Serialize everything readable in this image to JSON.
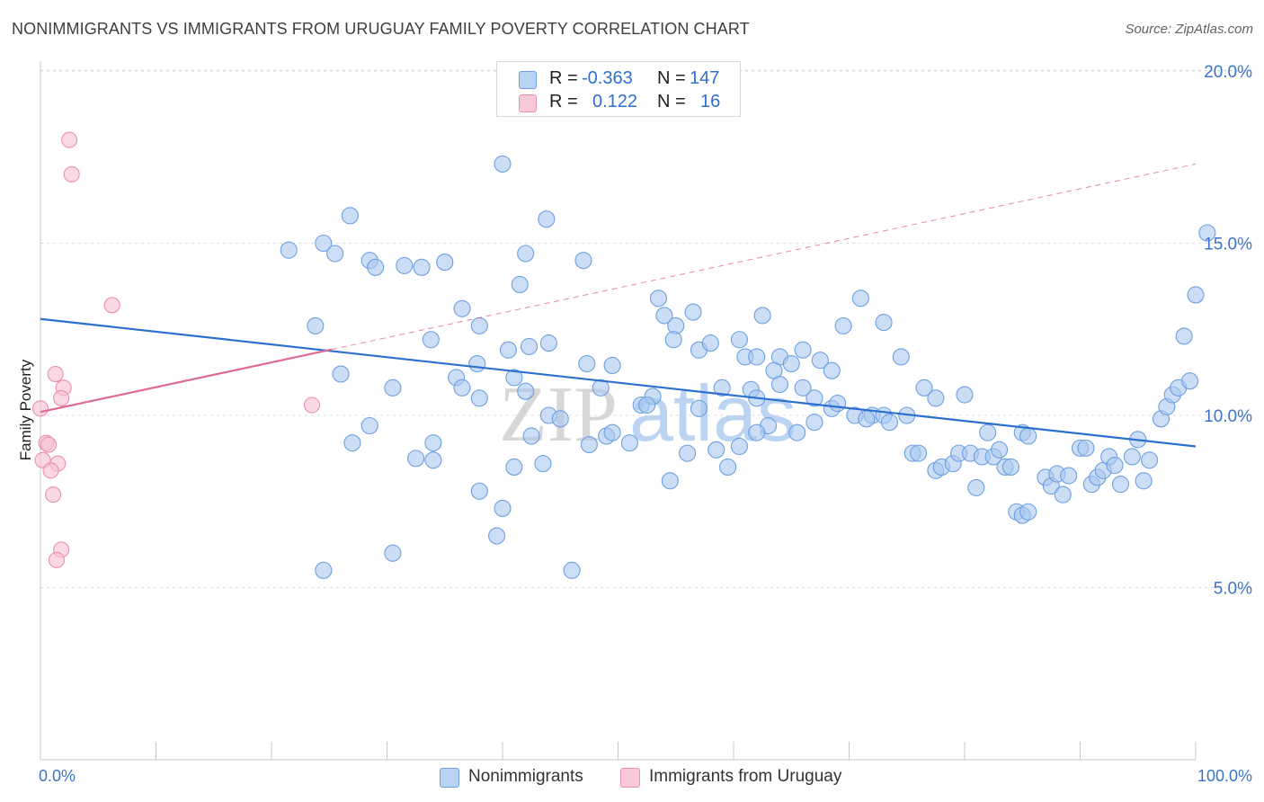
{
  "title": "NONIMMIGRANTS VS IMMIGRANTS FROM URUGUAY FAMILY POVERTY CORRELATION CHART",
  "source": "Source: ZipAtlas.com",
  "watermark": {
    "zip": "ZIP",
    "atlas": "atlas"
  },
  "legend_top": [
    {
      "r_label": "R =",
      "r_value": "-0.363",
      "n_label": "N =",
      "n_value": "147"
    },
    {
      "r_label": "R =",
      "r_value": "0.122",
      "n_label": "N =",
      "n_value": "16"
    }
  ],
  "legend_bottom": [
    {
      "label": "Nonimmigrants"
    },
    {
      "label": "Immigrants from Uruguay"
    }
  ],
  "colors": {
    "blue_fill": "#a9c8f0",
    "blue_stroke": "#6e9fe0",
    "blue_line": "#2b6fcf",
    "pink_fill": "#f7bfd0",
    "pink_stroke": "#ec8fae",
    "pink_line": "#e06a93",
    "tick_text": "#3b74c9",
    "grid": "#dcdcdc"
  },
  "chart_data": {
    "type": "scatter",
    "title": "NONIMMIGRANTS VS IMMIGRANTS FROM URUGUAY FAMILY POVERTY CORRELATION CHART",
    "xlabel": "",
    "ylabel": "Family Poverty",
    "xlim": [
      0,
      100
    ],
    "ylim": [
      0,
      21
    ],
    "x_tick_labels": [
      "0.0%",
      "100.0%"
    ],
    "y_ticks": [
      5,
      10,
      15,
      20
    ],
    "y_tick_labels": [
      "5.0%",
      "10.0%",
      "15.0%",
      "20.0%"
    ],
    "grid": "horizontal dashed",
    "legend_placement": "top-center and bottom",
    "series": [
      {
        "name": "Nonimmigrants",
        "r": -0.363,
        "n": 147,
        "trend": {
          "x": [
            0,
            100
          ],
          "y": [
            12.8,
            9.1
          ],
          "style": "solid"
        },
        "points": [
          [
            21.5,
            14.8
          ],
          [
            24.5,
            15.0
          ],
          [
            25.5,
            14.7
          ],
          [
            26.8,
            15.8
          ],
          [
            28.5,
            14.5
          ],
          [
            29.0,
            14.3
          ],
          [
            31.5,
            14.35
          ],
          [
            33.0,
            14.3
          ],
          [
            35.0,
            14.45
          ],
          [
            40.0,
            17.3
          ],
          [
            43.8,
            15.7
          ],
          [
            42.0,
            14.7
          ],
          [
            47.0,
            14.5
          ],
          [
            41.5,
            13.8
          ],
          [
            38.0,
            12.6
          ],
          [
            33.8,
            12.2
          ],
          [
            23.8,
            12.6
          ],
          [
            26.0,
            11.2
          ],
          [
            36.5,
            13.1
          ],
          [
            40.5,
            11.9
          ],
          [
            42.3,
            12.0
          ],
          [
            44.0,
            12.1
          ],
          [
            37.8,
            11.5
          ],
          [
            36.0,
            11.1
          ],
          [
            47.3,
            11.5
          ],
          [
            49.5,
            11.45
          ],
          [
            41.0,
            11.1
          ],
          [
            30.5,
            10.8
          ],
          [
            36.5,
            10.8
          ],
          [
            38.0,
            10.5
          ],
          [
            42.0,
            10.7
          ],
          [
            44.0,
            10.0
          ],
          [
            48.5,
            10.8
          ],
          [
            52.0,
            10.3
          ],
          [
            53.0,
            10.55
          ],
          [
            52.5,
            10.3
          ],
          [
            28.5,
            9.7
          ],
          [
            34.0,
            9.2
          ],
          [
            32.5,
            8.75
          ],
          [
            34.0,
            8.7
          ],
          [
            27.0,
            9.2
          ],
          [
            42.5,
            9.4
          ],
          [
            45.0,
            9.9
          ],
          [
            47.5,
            9.15
          ],
          [
            49.0,
            9.4
          ],
          [
            49.5,
            9.5
          ],
          [
            57.0,
            10.2
          ],
          [
            58.5,
            9.0
          ],
          [
            60.5,
            9.1
          ],
          [
            59.5,
            8.5
          ],
          [
            54.5,
            8.1
          ],
          [
            41.0,
            8.5
          ],
          [
            38.0,
            7.8
          ],
          [
            43.5,
            8.6
          ],
          [
            40.0,
            7.3
          ],
          [
            39.5,
            6.5
          ],
          [
            30.5,
            6.0
          ],
          [
            24.5,
            5.5
          ],
          [
            46.0,
            5.5
          ],
          [
            51.0,
            9.2
          ],
          [
            56.0,
            8.9
          ],
          [
            53.5,
            13.4
          ],
          [
            54.0,
            12.9
          ],
          [
            56.5,
            13.0
          ],
          [
            55.0,
            12.6
          ],
          [
            54.8,
            12.2
          ],
          [
            57.0,
            11.9
          ],
          [
            58.0,
            12.1
          ],
          [
            60.5,
            12.2
          ],
          [
            62.5,
            12.9
          ],
          [
            61.0,
            11.7
          ],
          [
            62.0,
            11.7
          ],
          [
            64.0,
            11.7
          ],
          [
            65.0,
            11.5
          ],
          [
            63.5,
            11.3
          ],
          [
            66.0,
            11.9
          ],
          [
            67.5,
            11.6
          ],
          [
            68.5,
            11.3
          ],
          [
            69.5,
            12.6
          ],
          [
            71.0,
            13.4
          ],
          [
            73.0,
            12.7
          ],
          [
            74.5,
            11.7
          ],
          [
            59.0,
            10.8
          ],
          [
            61.5,
            10.75
          ],
          [
            62.0,
            10.5
          ],
          [
            64.0,
            10.9
          ],
          [
            66.0,
            10.8
          ],
          [
            67.0,
            10.5
          ],
          [
            68.5,
            10.2
          ],
          [
            69.0,
            10.35
          ],
          [
            67.0,
            9.8
          ],
          [
            65.5,
            9.5
          ],
          [
            63.0,
            9.7
          ],
          [
            62.0,
            9.5
          ],
          [
            70.5,
            10.0
          ],
          [
            72.0,
            10.0
          ],
          [
            71.5,
            9.9
          ],
          [
            73.0,
            10.0
          ],
          [
            73.5,
            9.8
          ],
          [
            75.0,
            10.0
          ],
          [
            76.5,
            10.8
          ],
          [
            77.5,
            10.5
          ],
          [
            80.0,
            10.6
          ],
          [
            75.5,
            8.9
          ],
          [
            76.0,
            8.9
          ],
          [
            77.5,
            8.4
          ],
          [
            78.0,
            8.5
          ],
          [
            79.0,
            8.6
          ],
          [
            79.5,
            8.9
          ],
          [
            80.5,
            8.9
          ],
          [
            82.0,
            9.5
          ],
          [
            81.5,
            8.8
          ],
          [
            82.5,
            8.8
          ],
          [
            83.0,
            9.0
          ],
          [
            83.5,
            8.5
          ],
          [
            84.0,
            8.5
          ],
          [
            85.0,
            9.5
          ],
          [
            85.5,
            9.4
          ],
          [
            81.0,
            7.9
          ],
          [
            84.5,
            7.2
          ],
          [
            85.0,
            7.1
          ],
          [
            85.5,
            7.2
          ],
          [
            87.0,
            8.2
          ],
          [
            87.5,
            7.95
          ],
          [
            88.0,
            8.3
          ],
          [
            88.5,
            7.7
          ],
          [
            89.0,
            8.25
          ],
          [
            90.0,
            9.05
          ],
          [
            90.5,
            9.05
          ],
          [
            91.0,
            8.0
          ],
          [
            91.5,
            8.2
          ],
          [
            92.0,
            8.4
          ],
          [
            92.5,
            8.8
          ],
          [
            93.0,
            8.55
          ],
          [
            93.5,
            8.0
          ],
          [
            94.5,
            8.8
          ],
          [
            95.0,
            9.3
          ],
          [
            95.5,
            8.1
          ],
          [
            96.0,
            8.7
          ],
          [
            97.0,
            9.9
          ],
          [
            97.5,
            10.25
          ],
          [
            98.0,
            10.6
          ],
          [
            98.5,
            10.8
          ],
          [
            99.5,
            11.0
          ],
          [
            99.0,
            12.3
          ],
          [
            100.0,
            13.5
          ],
          [
            101.0,
            15.3
          ]
        ]
      },
      {
        "name": "Immigrants from Uruguay",
        "r": 0.122,
        "n": 16,
        "trend": {
          "x": [
            0,
            100
          ],
          "y": [
            10.1,
            17.3
          ],
          "style": "solid to 25.2, dashed after"
        },
        "points": [
          [
            2.5,
            18.0
          ],
          [
            2.7,
            17.0
          ],
          [
            6.2,
            13.2
          ],
          [
            1.3,
            11.2
          ],
          [
            2.0,
            10.8
          ],
          [
            1.8,
            10.5
          ],
          [
            0.0,
            10.2
          ],
          [
            0.5,
            9.2
          ],
          [
            0.7,
            9.15
          ],
          [
            1.5,
            8.6
          ],
          [
            0.2,
            8.7
          ],
          [
            0.9,
            8.4
          ],
          [
            1.1,
            7.7
          ],
          [
            1.8,
            6.1
          ],
          [
            1.4,
            5.8
          ],
          [
            23.5,
            10.3
          ]
        ]
      }
    ]
  }
}
